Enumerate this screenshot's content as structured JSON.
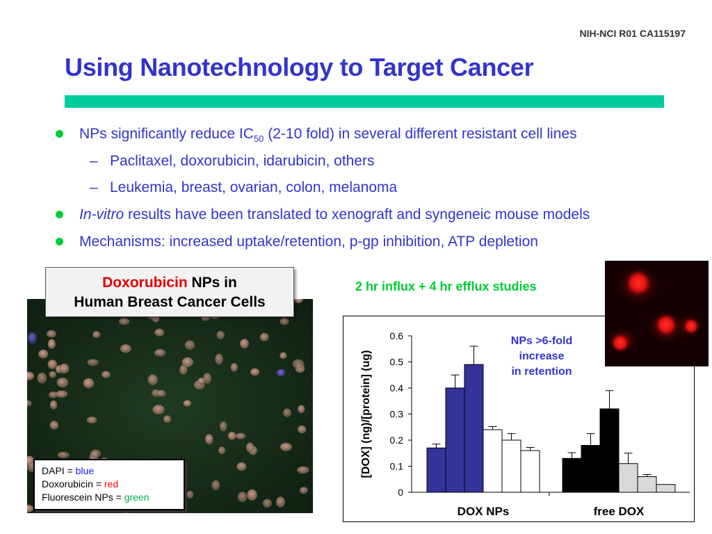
{
  "header": {
    "grant": "NIH-NCI R01 CA115197",
    "title": "Using Nanotechnology to Target Cancer"
  },
  "bullets": {
    "b1_pre": "NPs significantly reduce IC",
    "b1_sub": "50",
    "b1_post": " (2-10 fold) in several different resistant cell lines",
    "s1": "Paclitaxel, doxorubicin, idarubicin, others",
    "s2": "Leukemia, breast, ovarian, colon, melanoma",
    "b2_italic": "In-vitro",
    "b2_rest": " results have been translated to xenograft and syngeneic mouse models",
    "b3": "Mechanisms:  increased uptake/retention, p-gp inhibition, ATP depletion",
    "dash": "–"
  },
  "image_panel": {
    "label_red": "Doxorubicin",
    "label_rest": " NPs in",
    "label_line2": "Human Breast Cancer Cells",
    "legend": [
      {
        "pre": "DAPI = ",
        "word": "blue",
        "color": "#1a1aff"
      },
      {
        "pre": "Doxorubicin = ",
        "word": "red",
        "color": "#ff0000"
      },
      {
        "pre": "Fluorescein NPs = ",
        "word": "green",
        "color": "#00b050"
      }
    ]
  },
  "chart_data": {
    "type": "bar",
    "title": "2 hr influx + 4 hr efflux studies",
    "ylabel": "[DOX] (ng)/[protein] (ug)",
    "ylim": [
      0,
      0.6
    ],
    "yticks": [
      "0",
      "0.1",
      "0.2",
      "0.3",
      "0.4",
      "0.5",
      "0.6"
    ],
    "groups": [
      {
        "name": "DOX NPs",
        "bars": [
          {
            "value": 0.17,
            "err": 0.015,
            "fill": "#333399"
          },
          {
            "value": 0.4,
            "err": 0.05,
            "fill": "#333399"
          },
          {
            "value": 0.49,
            "err": 0.07,
            "fill": "#333399"
          },
          {
            "value": 0.24,
            "err": 0.012,
            "fill": "#ffffff"
          },
          {
            "value": 0.2,
            "err": 0.025,
            "fill": "#ffffff"
          },
          {
            "value": 0.16,
            "err": 0.012,
            "fill": "#ffffff"
          }
        ]
      },
      {
        "name": "free DOX",
        "bars": [
          {
            "value": 0.13,
            "err": 0.022,
            "fill": "#000000"
          },
          {
            "value": 0.18,
            "err": 0.045,
            "fill": "#000000"
          },
          {
            "value": 0.32,
            "err": 0.07,
            "fill": "#000000"
          },
          {
            "value": 0.11,
            "err": 0.04,
            "fill": "#d9d9d9"
          },
          {
            "value": 0.06,
            "err": 0.008,
            "fill": "#d9d9d9"
          },
          {
            "value": 0.03,
            "err": 0.0,
            "fill": "#d9d9d9"
          }
        ]
      }
    ],
    "annotation": [
      "NPs >6-fold",
      "increase",
      "in retention"
    ]
  }
}
